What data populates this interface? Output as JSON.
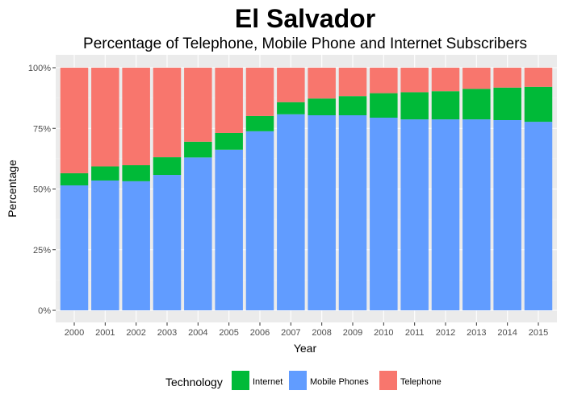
{
  "chart_data": {
    "type": "bar",
    "stacked": true,
    "normalized": true,
    "title": "El Salvador",
    "subtitle": "Percentage of Telephone, Mobile Phone and Internet Subscribers",
    "xlabel": "Year",
    "ylabel": "Percentage",
    "ylim": [
      0,
      100
    ],
    "yticks": [
      "0%",
      "25%",
      "50%",
      "75%",
      "100%"
    ],
    "grid": true,
    "legend_position": "bottom",
    "legend_title": "Technology",
    "categories": [
      "2000",
      "2001",
      "2002",
      "2003",
      "2004",
      "2005",
      "2006",
      "2007",
      "2008",
      "2009",
      "2010",
      "2011",
      "2012",
      "2013",
      "2014",
      "2015"
    ],
    "series": [
      {
        "name": "Mobile Phones",
        "color": "#619CFF",
        "values": [
          51.5,
          53.5,
          53.2,
          55.8,
          63.0,
          66.2,
          73.8,
          80.8,
          80.4,
          80.4,
          79.4,
          78.7,
          78.7,
          78.7,
          78.4,
          77.7
        ]
      },
      {
        "name": "Internet",
        "color": "#00BA38",
        "values": [
          5.0,
          5.8,
          6.6,
          7.3,
          6.5,
          6.9,
          6.3,
          5.0,
          6.9,
          7.9,
          10.1,
          11.2,
          11.6,
          12.6,
          13.4,
          14.4
        ]
      },
      {
        "name": "Telephone",
        "color": "#F8766D",
        "values": [
          43.5,
          40.7,
          40.2,
          36.9,
          30.5,
          26.9,
          19.9,
          14.2,
          12.7,
          11.7,
          10.5,
          10.1,
          9.7,
          8.7,
          8.2,
          7.9
        ]
      }
    ],
    "legend_order": [
      "Internet",
      "Mobile Phones",
      "Telephone"
    ]
  }
}
